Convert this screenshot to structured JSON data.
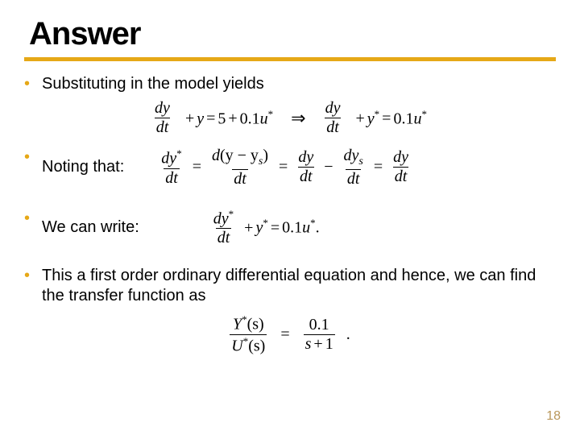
{
  "title": "Answer",
  "rule_color": "#e6a817",
  "bullet_color": "#e6a817",
  "page_number_color": "#b9975b",
  "bullets": {
    "b1": "Substituting in the model yields",
    "b2": "Noting that:",
    "b3": "We can write:",
    "b4": "This a first order ordinary differential equation and hence, we can find the transfer function as"
  },
  "eq1": {
    "lhs_num": "dy",
    "lhs_den": "dt",
    "plus_y": "y",
    "eq": "=",
    "rhs1": "5",
    "plus": "+",
    "coef": "0.1",
    "u": "u",
    "star": "*",
    "arrow": "⇒",
    "lhs2_num": "dy",
    "lhs2_den": "dt",
    "plus_y2": "y",
    "rhs2_coef": "0.1",
    "rhs2_u": "u"
  },
  "eq2": {
    "f1_num": "dy",
    "f1_den": "dt",
    "eq": "=",
    "f2_num_a": "d",
    "f2_num_b": "(y − y",
    "f2_num_sub": "s",
    "f2_num_c": ")",
    "f2_den": "dt",
    "f3_num": "dy",
    "f3_den": "dt",
    "minus": "−",
    "f4_num": "dy",
    "f4_sub": "s",
    "f4_den": "dt",
    "f5_num": "dy",
    "f5_den": "dt"
  },
  "eq3": {
    "f_num": "dy",
    "f_den": "dt",
    "plus": "+",
    "y": "y",
    "eq": "=",
    "coef": "0.1",
    "u": "u",
    "dot": "."
  },
  "eq4": {
    "top_Y": "Y",
    "top_s": "(s)",
    "bot_U": "U",
    "bot_s": "(s)",
    "eq": "=",
    "num": "0.1",
    "den_a": "s",
    "den_b": "+",
    "den_c": "1",
    "dot": "."
  },
  "page_number": "18"
}
